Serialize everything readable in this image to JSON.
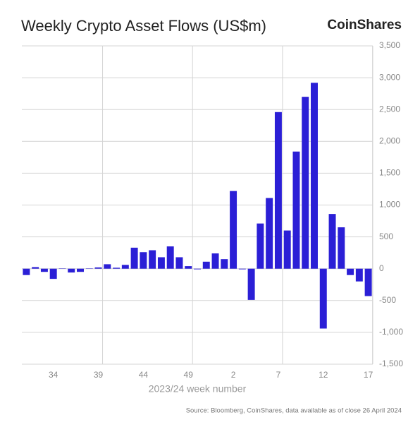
{
  "chart_data": {
    "type": "bar",
    "title": "Weekly Crypto Asset Flows (US$m)",
    "brand": "CoinShares",
    "x_label": "2023/24 week number",
    "source": "Source: Bloomberg, CoinShares, data available as of close 26 April 2024",
    "categories": [
      null,
      null,
      null,
      "34",
      null,
      null,
      null,
      null,
      "39",
      null,
      null,
      null,
      null,
      "44",
      null,
      null,
      null,
      null,
      "49",
      null,
      null,
      null,
      null,
      "2",
      null,
      null,
      null,
      null,
      "7",
      null,
      null,
      null,
      null,
      "12",
      null,
      null,
      null,
      null,
      "17"
    ],
    "values": [
      -100,
      25,
      -50,
      -160,
      5,
      -60,
      -50,
      5,
      20,
      70,
      15,
      60,
      330,
      260,
      290,
      180,
      350,
      180,
      40,
      -10,
      110,
      240,
      150,
      1220,
      -10,
      -490,
      710,
      1110,
      2460,
      600,
      1840,
      2700,
      2920,
      -940,
      860,
      650,
      -100,
      -200,
      -430
    ],
    "color": "#2b1fd6",
    "ylim": [
      -1500,
      3500
    ],
    "yticks": [
      {
        "value": -1500,
        "label": "-1,500"
      },
      {
        "value": -1000,
        "label": "-1,000"
      },
      -500,
      0,
      500,
      {
        "value": 1000,
        "label": "1,000"
      },
      {
        "value": 1500,
        "label": "1,500"
      },
      {
        "value": 2000,
        "label": "2,000"
      },
      {
        "value": 2500,
        "label": "2,500"
      },
      {
        "value": 3000,
        "label": "3,000"
      },
      {
        "value": 3500,
        "label": "3,500"
      }
    ],
    "grid": true
  }
}
